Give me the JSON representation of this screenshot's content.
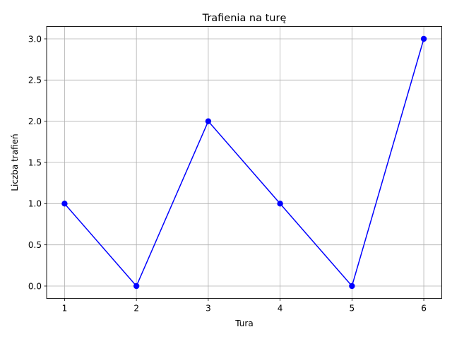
{
  "chart_data": {
    "type": "line",
    "title": "Trafienia na turę",
    "xlabel": "Tura",
    "ylabel": "Liczba trafień",
    "x": [
      1,
      2,
      3,
      4,
      5,
      6
    ],
    "series": [
      {
        "values": [
          1,
          0,
          2,
          1,
          0,
          3
        ]
      }
    ],
    "xlim": [
      0.75,
      6.25
    ],
    "ylim": [
      -0.15,
      3.15
    ],
    "xticks": [
      "1",
      "2",
      "3",
      "4",
      "5",
      "6"
    ],
    "yticks": [
      "0.0",
      "0.5",
      "1.0",
      "1.5",
      "2.0",
      "2.5",
      "3.0"
    ],
    "grid": true,
    "line_color": "#0000ff",
    "marker": "circle",
    "grid_color": "#b0b0b0"
  }
}
